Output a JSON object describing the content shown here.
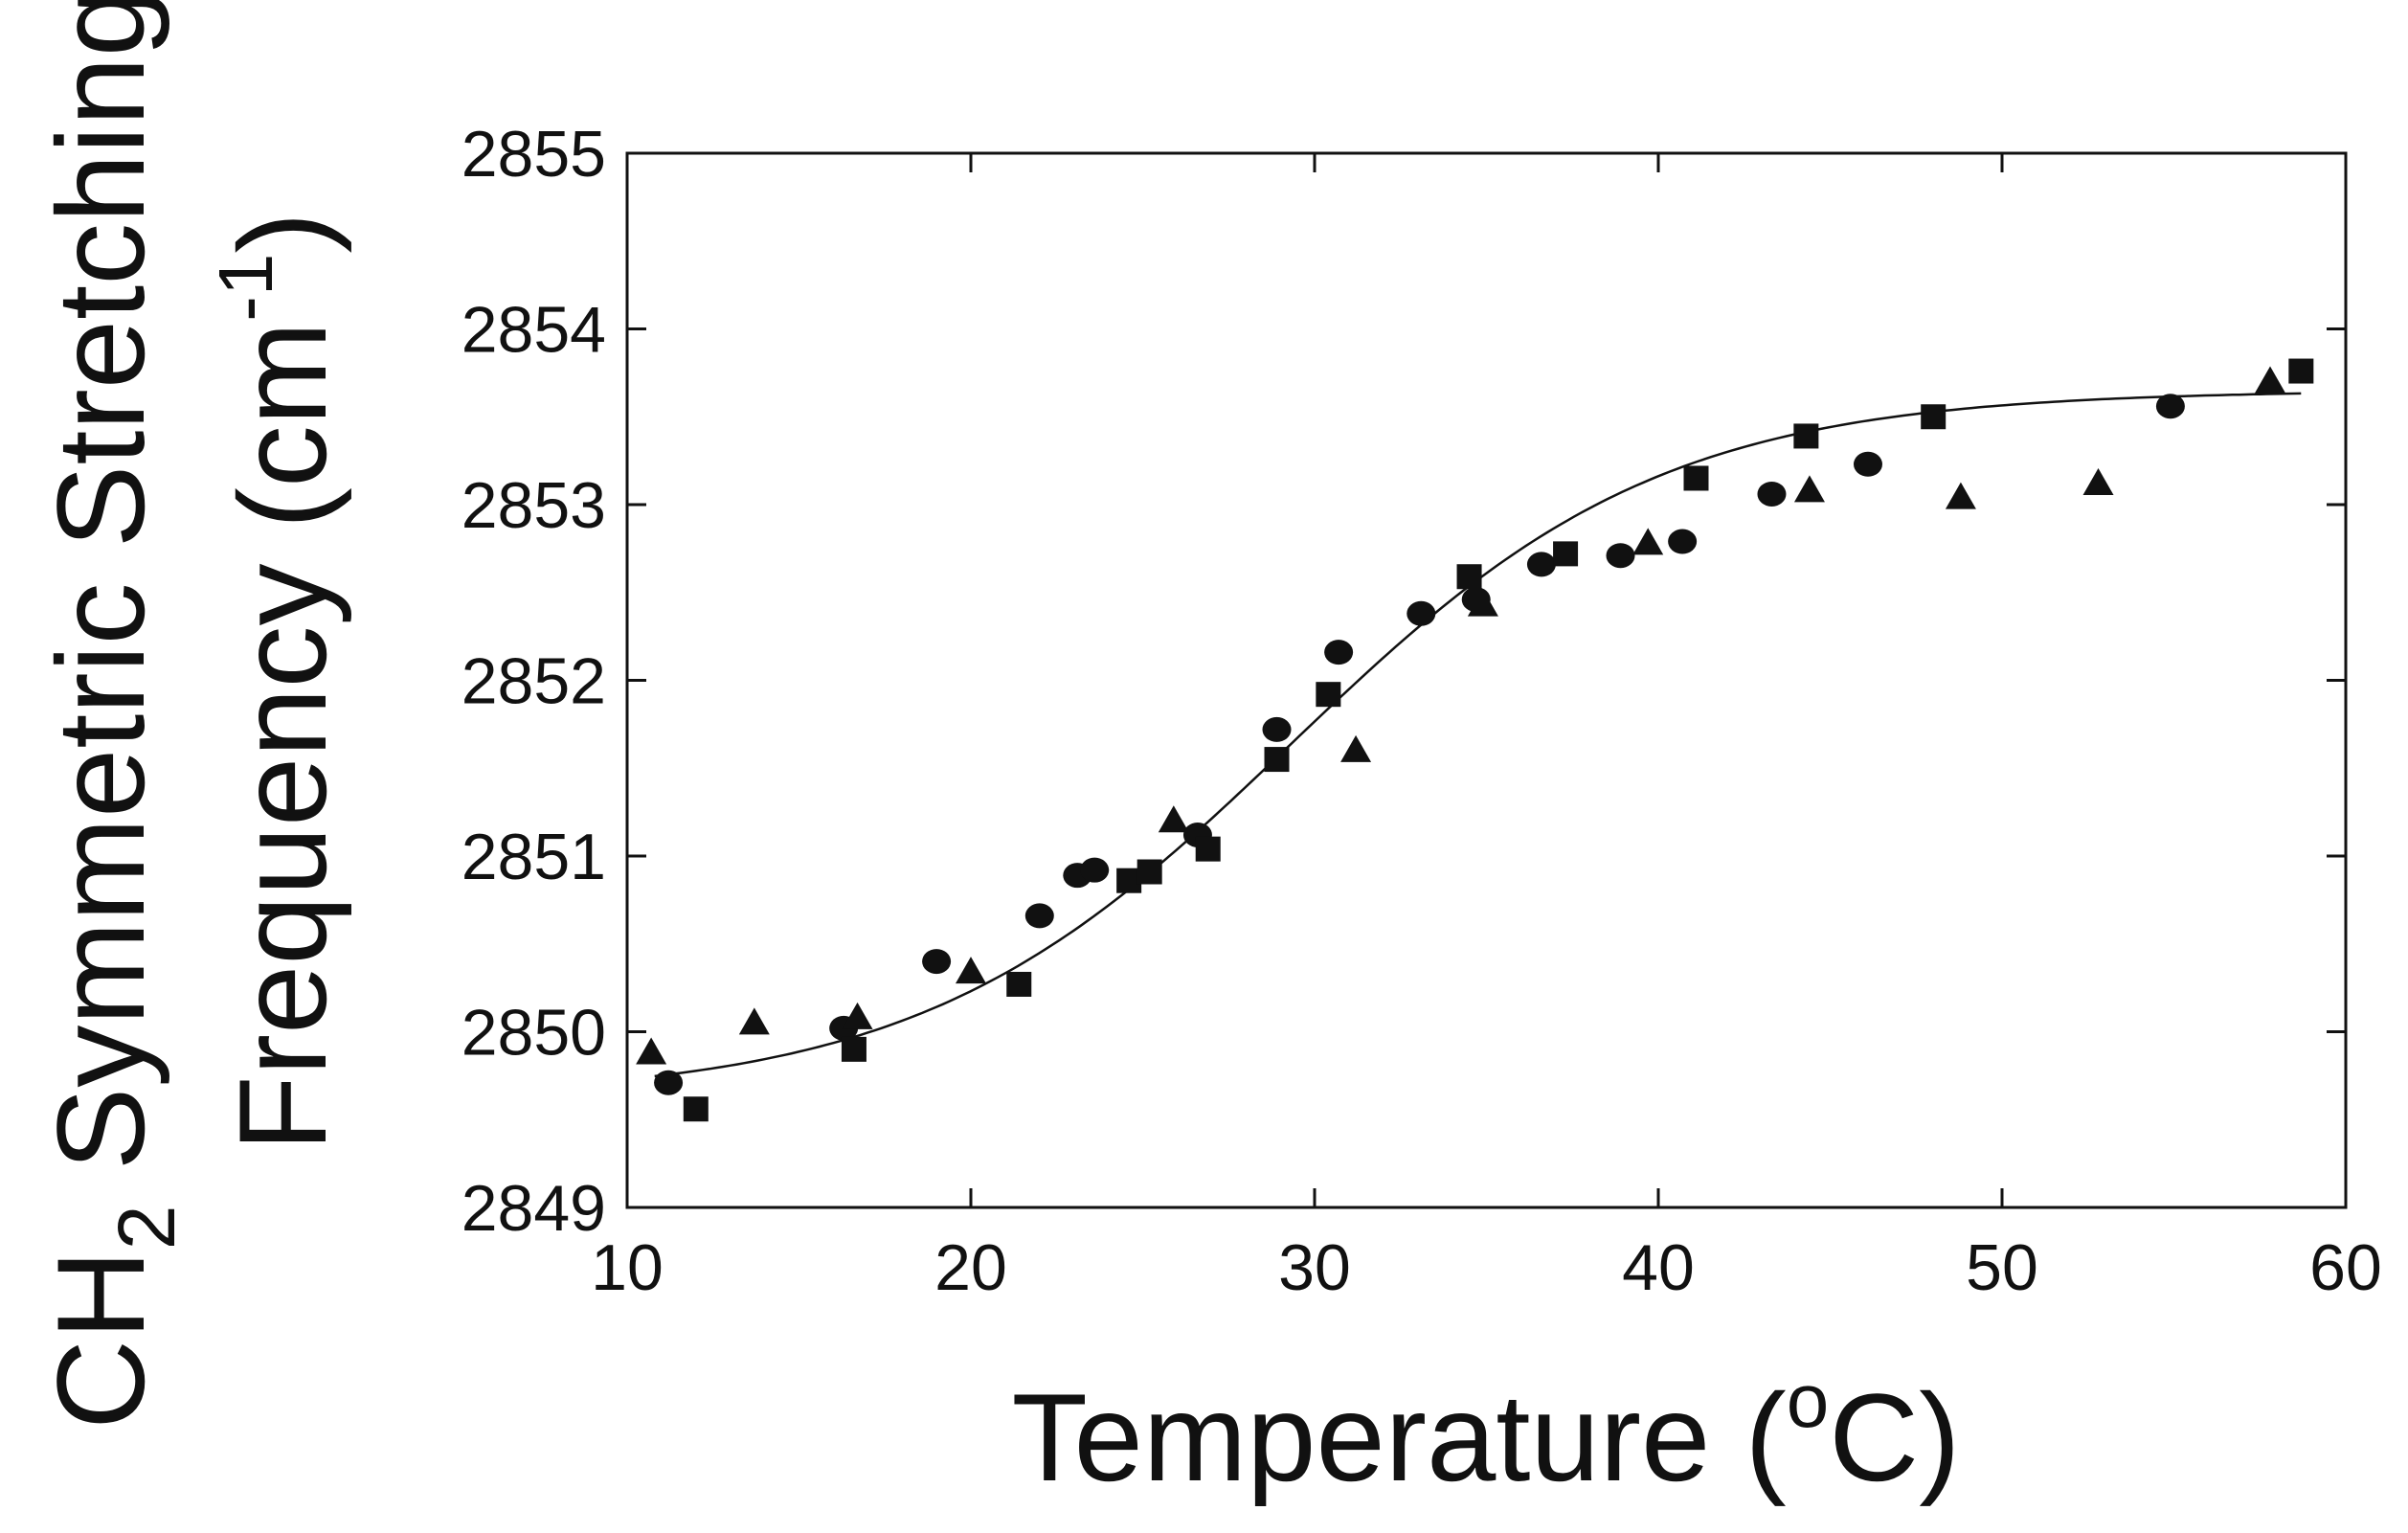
{
  "chart_data": {
    "type": "scatter",
    "title": "",
    "xlabel": "Temperature (",
    "xlabel_sup": "o",
    "xlabel_tail": "C)",
    "ylabel_line1_prefix": "CH",
    "ylabel_line1_sub": "2",
    "ylabel_line1_tail": " Symmetric Stretching",
    "ylabel_line2_prefix": "Frequency (cm",
    "ylabel_line2_sup": "-1",
    "ylabel_line2_tail": ")",
    "xlim": [
      10,
      60
    ],
    "ylim": [
      2849,
      2855
    ],
    "xticks": [
      10,
      20,
      30,
      40,
      50,
      60
    ],
    "yticks": [
      2849,
      2850,
      2851,
      2852,
      2853,
      2854,
      2855
    ],
    "grid": false,
    "legend": "none",
    "series": [
      {
        "name": "circles",
        "marker": "circle",
        "points": [
          [
            11.2,
            2849.71
          ],
          [
            16.3,
            2850.02
          ],
          [
            19.0,
            2850.4
          ],
          [
            22.0,
            2850.66
          ],
          [
            23.1,
            2850.89
          ],
          [
            23.6,
            2850.92
          ],
          [
            26.6,
            2851.12
          ],
          [
            28.9,
            2851.72
          ],
          [
            30.7,
            2852.16
          ],
          [
            33.1,
            2852.38
          ],
          [
            34.7,
            2852.46
          ],
          [
            36.6,
            2852.66
          ],
          [
            38.9,
            2852.71
          ],
          [
            40.7,
            2852.79
          ],
          [
            43.3,
            2853.06
          ],
          [
            46.1,
            2853.23
          ],
          [
            54.9,
            2853.56
          ]
        ]
      },
      {
        "name": "squares",
        "marker": "square",
        "points": [
          [
            12.0,
            2849.56
          ],
          [
            16.6,
            2849.9
          ],
          [
            21.4,
            2850.27
          ],
          [
            24.6,
            2850.86
          ],
          [
            25.2,
            2850.91
          ],
          [
            26.9,
            2851.04
          ],
          [
            28.9,
            2851.55
          ],
          [
            30.4,
            2851.92
          ],
          [
            34.5,
            2852.59
          ],
          [
            37.3,
            2852.72
          ],
          [
            41.1,
            2853.15
          ],
          [
            44.3,
            2853.39
          ],
          [
            48.0,
            2853.5
          ],
          [
            58.7,
            2853.76
          ]
        ]
      },
      {
        "name": "triangles",
        "marker": "triangle",
        "points": [
          [
            10.7,
            2849.88
          ],
          [
            13.7,
            2850.05
          ],
          [
            16.7,
            2850.08
          ],
          [
            20.0,
            2850.34
          ],
          [
            25.9,
            2851.2
          ],
          [
            31.2,
            2851.6
          ],
          [
            34.9,
            2852.43
          ],
          [
            39.7,
            2852.78
          ],
          [
            44.4,
            2853.08
          ],
          [
            48.8,
            2853.04
          ],
          [
            52.8,
            2853.12
          ],
          [
            57.8,
            2853.7
          ]
        ]
      },
      {
        "name": "fit",
        "marker": "line",
        "curve": {
          "form": "sigmoid",
          "bottom": 2849.62,
          "top": 2853.65,
          "midpoint_x": 29.3,
          "width": 5.4,
          "x_start": 10.8,
          "x_end": 58.7
        }
      }
    ]
  }
}
